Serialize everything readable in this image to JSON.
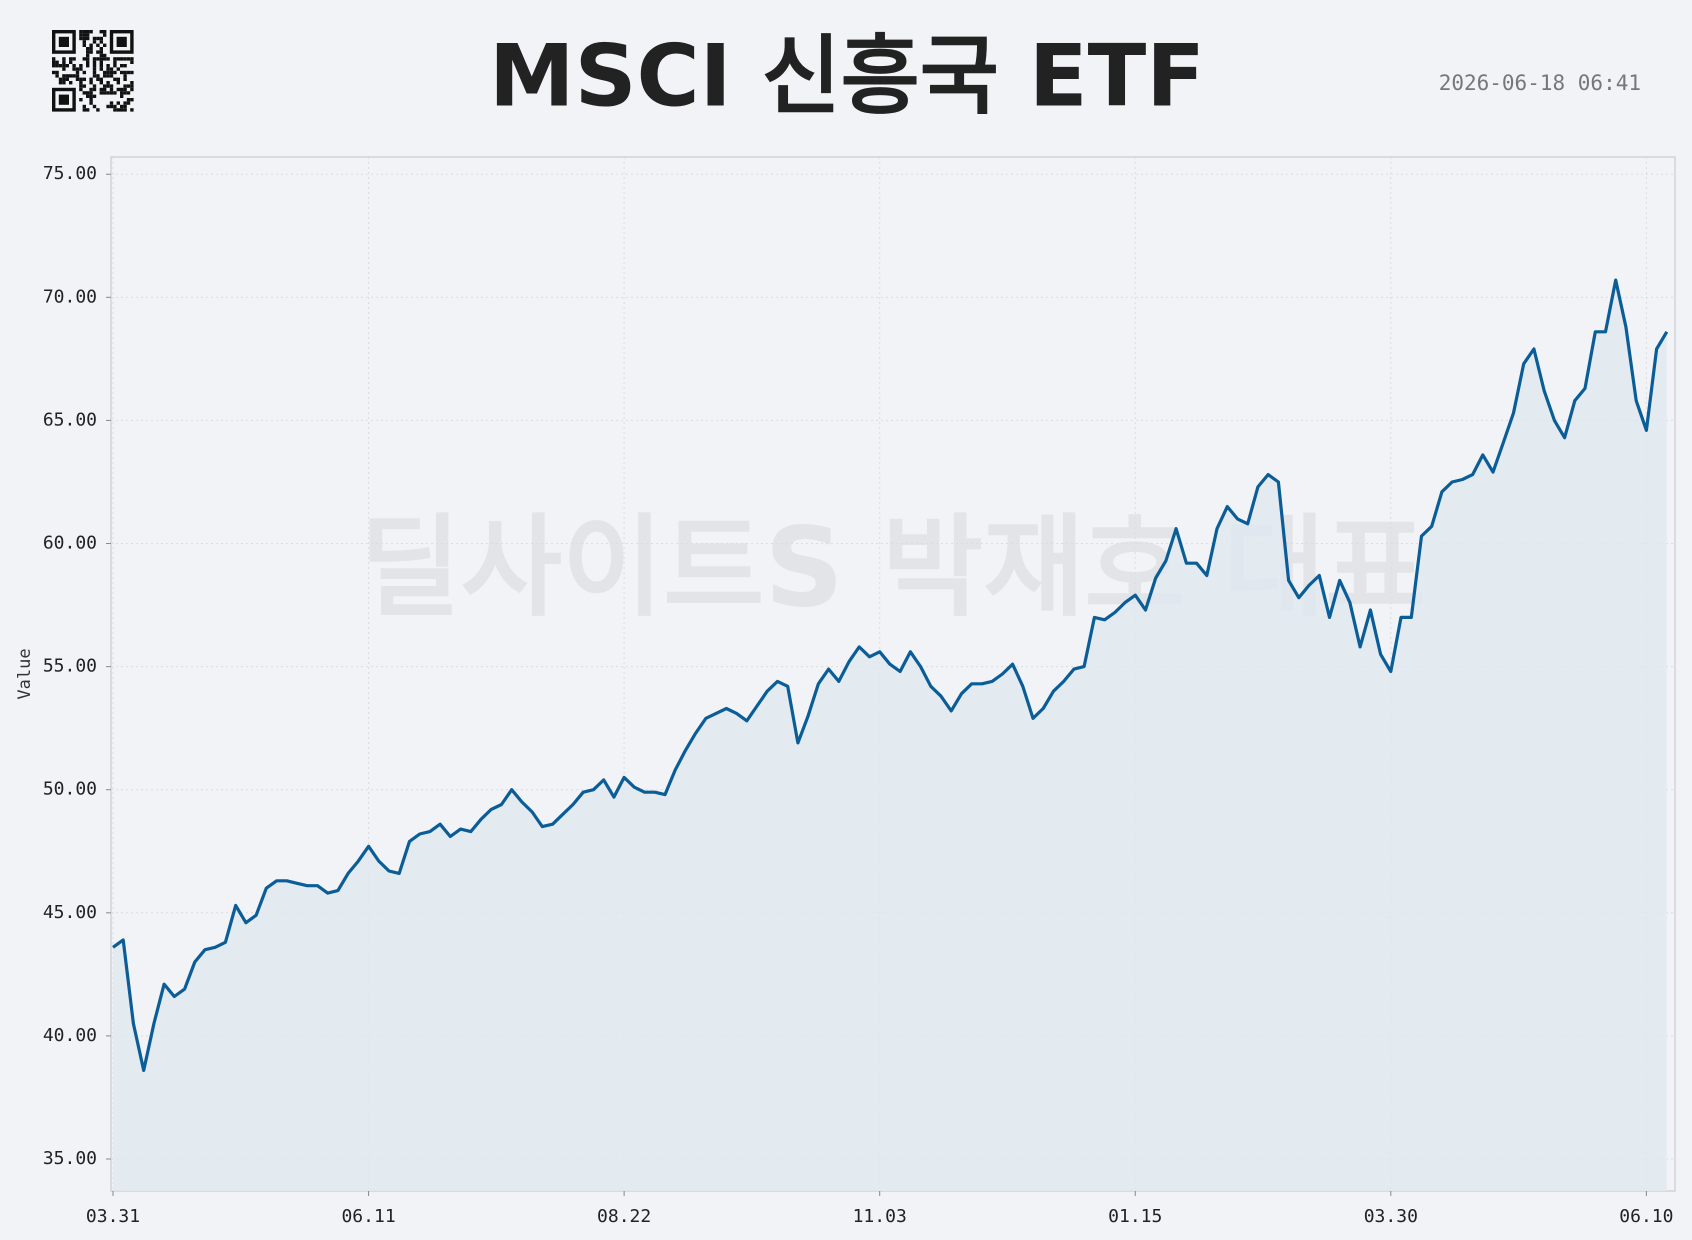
{
  "chart_data": {
    "type": "line",
    "title": "MSCI 신흥국 ETF",
    "timestamp": "2026-06-18 06:41",
    "watermark": "딜사이트S 박재호 대표",
    "ylabel": "Value",
    "color": "#0b5d98",
    "fill_color": "#e1e8ef",
    "grid": true,
    "categories": [
      "03.31",
      null,
      null,
      null,
      null,
      null,
      null,
      null,
      null,
      null,
      null,
      null,
      null,
      null,
      null,
      null,
      null,
      null,
      null,
      null,
      null,
      null,
      null,
      null,
      null,
      "06.11",
      null,
      null,
      null,
      null,
      null,
      null,
      null,
      null,
      null,
      null,
      null,
      null,
      null,
      null,
      null,
      null,
      null,
      null,
      null,
      null,
      null,
      null,
      null,
      null,
      "08.22",
      null,
      null,
      null,
      null,
      null,
      null,
      null,
      null,
      null,
      null,
      null,
      null,
      null,
      null,
      null,
      null,
      null,
      null,
      null,
      null,
      null,
      null,
      null,
      null,
      "11.03",
      null,
      null,
      null,
      null,
      null,
      null,
      null,
      null,
      null,
      null,
      null,
      null,
      null,
      null,
      null,
      null,
      null,
      null,
      null,
      null,
      null,
      null,
      null,
      null,
      "01.15",
      null,
      null,
      null,
      null,
      null,
      null,
      null,
      null,
      null,
      null,
      null,
      null,
      null,
      null,
      null,
      null,
      null,
      null,
      null,
      null,
      null,
      null,
      null,
      null,
      "03.30",
      null,
      null,
      null,
      null,
      null,
      null,
      null,
      null,
      null,
      null,
      null,
      null,
      null,
      null,
      null,
      null,
      null,
      null,
      null,
      null,
      null,
      null,
      null,
      null,
      "06.10",
      null,
      null
    ],
    "values": [
      43.6,
      43.9,
      40.5,
      38.6,
      40.5,
      42.1,
      41.6,
      41.9,
      43.0,
      43.5,
      43.6,
      43.8,
      45.3,
      44.6,
      44.9,
      46.0,
      46.3,
      46.3,
      46.2,
      46.1,
      46.1,
      45.8,
      45.9,
      46.6,
      47.1,
      47.7,
      47.1,
      46.7,
      46.6,
      47.9,
      48.2,
      48.3,
      48.6,
      48.1,
      48.4,
      48.3,
      48.8,
      49.2,
      49.4,
      50.0,
      49.5,
      49.1,
      48.5,
      48.6,
      49.0,
      49.4,
      49.9,
      50.0,
      50.4,
      49.7,
      50.5,
      50.1,
      49.9,
      49.9,
      49.8,
      50.8,
      51.6,
      52.3,
      52.9,
      53.1,
      53.3,
      53.1,
      52.8,
      53.4,
      54.0,
      54.4,
      54.2,
      51.9,
      53.0,
      54.3,
      54.9,
      54.4,
      55.2,
      55.8,
      55.4,
      55.6,
      55.1,
      54.8,
      55.6,
      55.0,
      54.2,
      53.8,
      53.2,
      53.9,
      54.3,
      54.3,
      54.4,
      54.7,
      55.1,
      54.2,
      52.9,
      53.3,
      54.0,
      54.4,
      54.9,
      55.0,
      57.0,
      56.9,
      57.2,
      57.6,
      57.9,
      57.3,
      58.6,
      59.3,
      60.6,
      59.2,
      59.2,
      58.7,
      60.6,
      61.5,
      61.0,
      60.8,
      62.3,
      62.8,
      62.5,
      58.5,
      57.8,
      58.3,
      58.7,
      57.0,
      58.5,
      57.6,
      55.8,
      57.3,
      55.5,
      54.8,
      57.0,
      57.0,
      60.3,
      60.7,
      62.1,
      62.5,
      62.6,
      62.8,
      63.6,
      62.9,
      64.1,
      65.3,
      67.3,
      67.9,
      66.2,
      65.0,
      64.3,
      65.8,
      66.3,
      68.6,
      68.6,
      70.7,
      68.8,
      65.8,
      64.6,
      67.9,
      68.6
    ],
    "ylim": [
      33.7,
      75.7
    ],
    "yticks": [
      {
        "value": 35,
        "label": "35.00"
      },
      {
        "value": 40,
        "label": "40.00"
      },
      {
        "value": 45,
        "label": "45.00"
      },
      {
        "value": 50,
        "label": "50.00"
      },
      {
        "value": 55,
        "label": "55.00"
      },
      {
        "value": 60,
        "label": "60.00"
      },
      {
        "value": 65,
        "label": "65.00"
      },
      {
        "value": 70,
        "label": "70.00"
      },
      {
        "value": 75,
        "label": "75.00"
      }
    ]
  }
}
